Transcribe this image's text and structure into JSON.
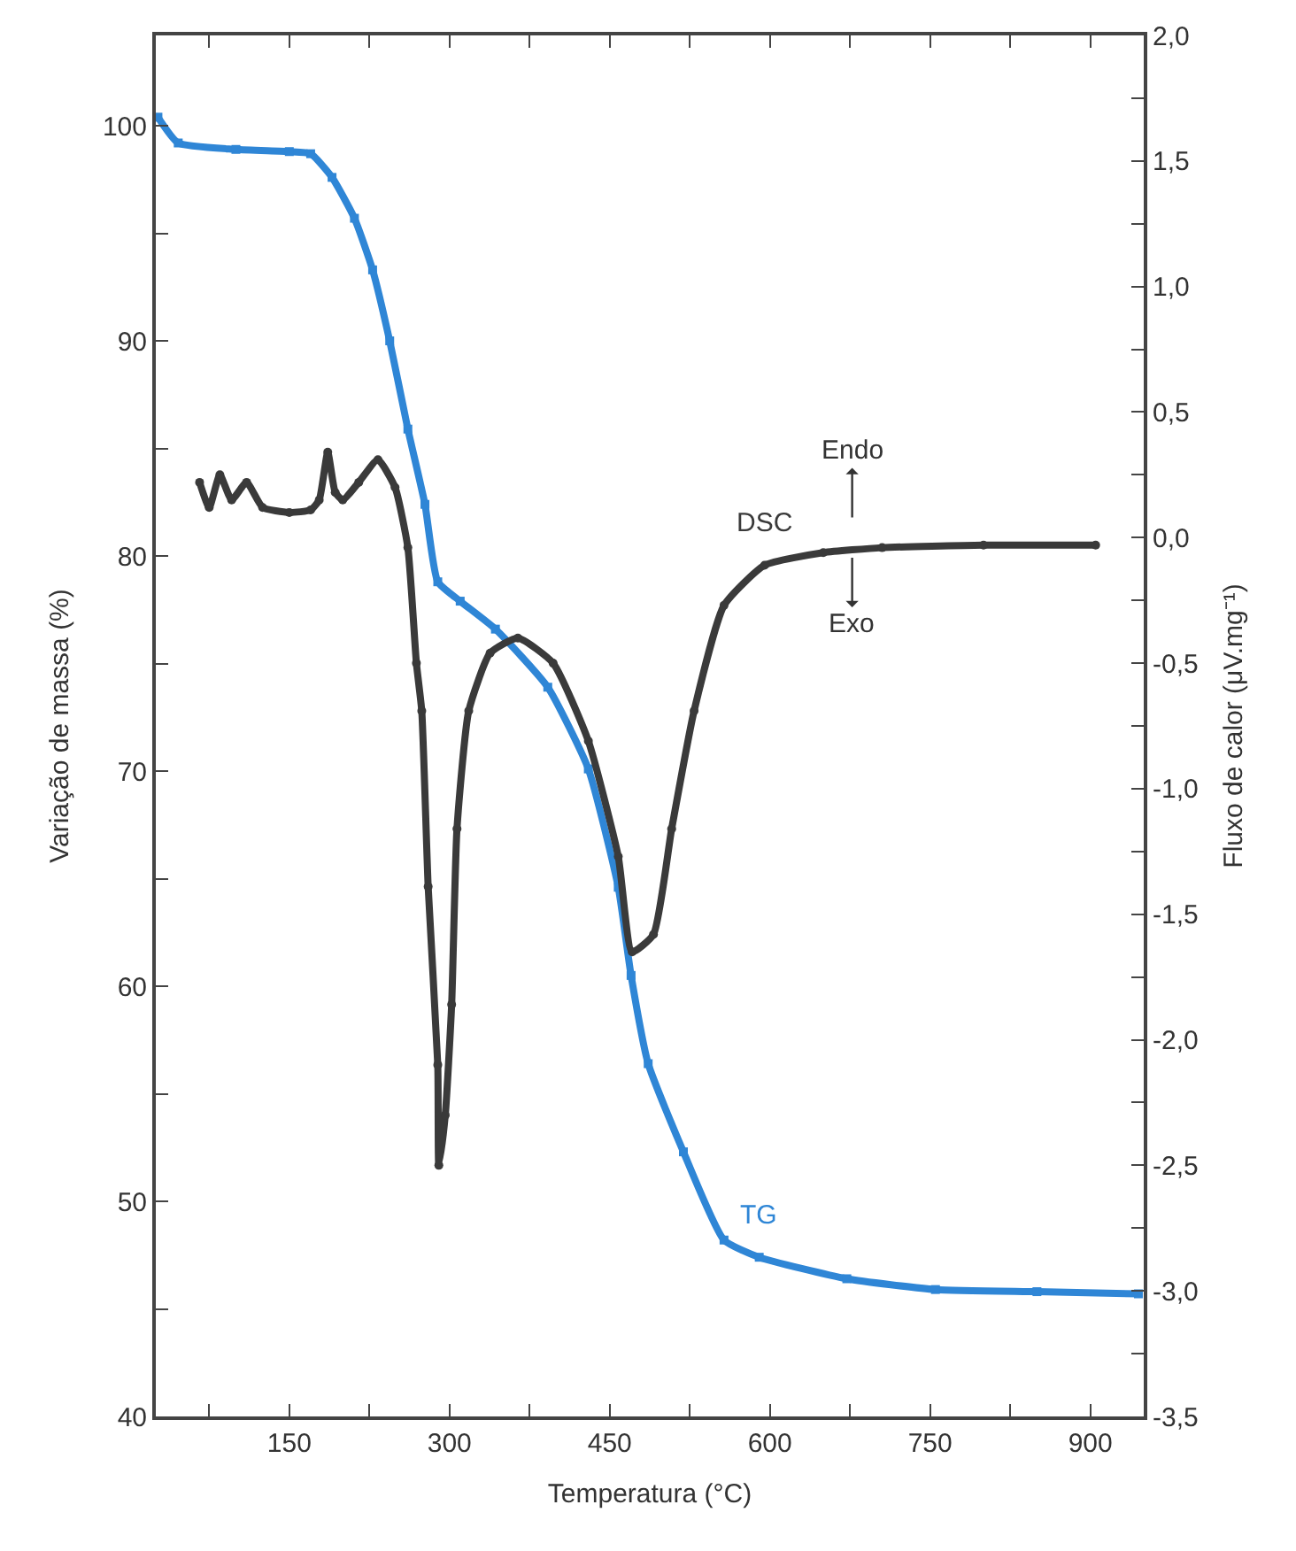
{
  "chart_data": {
    "type": "line",
    "xlabel": "Temperatura (°C)",
    "ylabel": "Variação de massa (%)",
    "y2label": "Fluxo de calor (μV.mg⁻¹)",
    "xlim": [
      25,
      950
    ],
    "xticks": [
      {
        "value": 75,
        "label": null
      },
      150,
      {
        "value": 225,
        "label": null
      },
      300,
      {
        "value": 375,
        "label": null
      },
      450,
      {
        "value": 525,
        "label": null
      },
      600,
      {
        "value": 675,
        "label": null
      },
      750,
      {
        "value": 825,
        "label": null
      },
      900
    ],
    "ylim": [
      40,
      104.2
    ],
    "yticks": [
      40,
      {
        "value": 45,
        "label": null
      },
      50,
      {
        "value": 55,
        "label": null
      },
      60,
      {
        "value": 65,
        "label": null
      },
      70,
      {
        "value": 75,
        "label": null
      },
      80,
      {
        "value": 85,
        "label": null
      },
      90,
      {
        "value": 95,
        "label": null
      },
      100
    ],
    "y2lim": [
      -3.5,
      2.0
    ],
    "y2ticks": [
      {
        "value": -3.5,
        "label": "-3,5"
      },
      {
        "value": -3.25,
        "label": null
      },
      {
        "value": -3.0,
        "label": "-3,0"
      },
      {
        "value": -2.75,
        "label": null
      },
      {
        "value": -2.5,
        "label": "-2,5"
      },
      {
        "value": -2.25,
        "label": null
      },
      {
        "value": -2.0,
        "label": "-2,0"
      },
      {
        "value": -1.75,
        "label": null
      },
      {
        "value": -1.5,
        "label": "-1,5"
      },
      {
        "value": -1.25,
        "label": null
      },
      {
        "value": -1.0,
        "label": "-1,0"
      },
      {
        "value": -0.75,
        "label": null
      },
      {
        "value": -0.5,
        "label": "-0,5"
      },
      {
        "value": -0.25,
        "label": null
      },
      {
        "value": 0.0,
        "label": "0,0"
      },
      {
        "value": 0.25,
        "label": null
      },
      {
        "value": 0.5,
        "label": "0,5"
      },
      {
        "value": 0.75,
        "label": null
      },
      {
        "value": 1.0,
        "label": "1,0"
      },
      {
        "value": 1.25,
        "label": null
      },
      {
        "value": 1.5,
        "label": "1,5"
      },
      {
        "value": 1.75,
        "label": null
      },
      {
        "value": 2.0,
        "label": "2,0"
      }
    ],
    "legend": false,
    "annotations": [
      "Endo",
      "Exo"
    ],
    "series": [
      {
        "name": "TG",
        "color": "#2f86d6",
        "marker": "square",
        "x": [
          27,
          46,
          100,
          150,
          170,
          190,
          211,
          228,
          244,
          261,
          277,
          289,
          310,
          343,
          392,
          430,
          458,
          470,
          486,
          519,
          557,
          590,
          672,
          755,
          850,
          945
        ],
        "values": [
          100.4,
          99.2,
          98.9,
          98.8,
          98.7,
          97.6,
          95.7,
          93.3,
          90.0,
          85.9,
          82.4,
          78.8,
          77.9,
          76.6,
          73.9,
          70.1,
          64.6,
          60.5,
          56.4,
          52.3,
          48.2,
          47.4,
          46.4,
          45.9,
          45.8,
          45.7
        ]
      },
      {
        "name": "DSC",
        "color": "#3a3a3a",
        "marker": "circle",
        "axis": "y2",
        "x": [
          66,
          75,
          85,
          96,
          110,
          125,
          150,
          170,
          178,
          186,
          193,
          200,
          215,
          233,
          249,
          261,
          269,
          274,
          280,
          289,
          290,
          296,
          302,
          307,
          318,
          338,
          364,
          397,
          430,
          458,
          471,
          491,
          508,
          529,
          557,
          595,
          650,
          705,
          800,
          905
        ],
        "values": [
          0.22,
          0.12,
          0.25,
          0.15,
          0.22,
          0.12,
          0.1,
          0.11,
          0.15,
          0.34,
          0.18,
          0.15,
          0.22,
          0.31,
          0.2,
          -0.04,
          -0.5,
          -0.69,
          -1.39,
          -2.1,
          -2.5,
          -2.3,
          -1.86,
          -1.16,
          -0.69,
          -0.46,
          -0.4,
          -0.5,
          -0.81,
          -1.27,
          -1.65,
          -1.58,
          -1.16,
          -0.69,
          -0.27,
          -0.11,
          -0.06,
          -0.04,
          -0.03,
          -0.03
        ]
      }
    ]
  }
}
